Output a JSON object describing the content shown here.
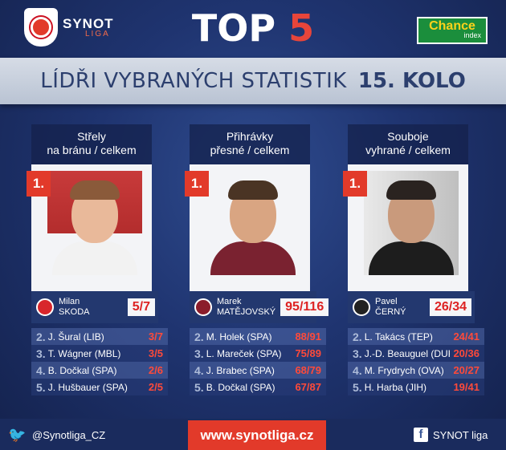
{
  "header": {
    "logo_main": "SYNOT",
    "logo_sub": "LIGA",
    "title_word": "TOP",
    "title_num": "5",
    "sponsor_main": "Chance",
    "sponsor_sub": "index"
  },
  "subtitle": {
    "text": "LÍDŘI VYBRANÝCH STATISTIK",
    "round": "15. KOLO"
  },
  "columns": [
    {
      "title_line1": "Střely",
      "title_line2": "na bránu / celkem",
      "rank": "1.",
      "first_name": "Milan",
      "last_name": "SKODA",
      "score": "5/7",
      "club_color": "#d8262c",
      "list": [
        {
          "rank": "2.",
          "player": "J. Šural (LIB)",
          "value": "3/7"
        },
        {
          "rank": "3.",
          "player": "T. Wágner (MBL)",
          "value": "3/5"
        },
        {
          "rank": "4.",
          "player": "B. Dočkal (SPA)",
          "value": "2/6"
        },
        {
          "rank": "5.",
          "player": "J. Hušbauer (SPA)",
          "value": "2/5"
        }
      ]
    },
    {
      "title_line1": "Přihrávky",
      "title_line2": "přesné / celkem",
      "rank": "1.",
      "first_name": "Marek",
      "last_name": "MATĚJOVSKÝ",
      "score": "95/116",
      "club_color": "#8b1d2b",
      "list": [
        {
          "rank": "2.",
          "player": "M. Holek (SPA)",
          "value": "88/91"
        },
        {
          "rank": "3.",
          "player": "L. Mareček (SPA)",
          "value": "75/89"
        },
        {
          "rank": "4.",
          "player": "J. Brabec (SPA)",
          "value": "68/79"
        },
        {
          "rank": "5.",
          "player": "B. Dočkal (SPA)",
          "value": "67/87"
        }
      ]
    },
    {
      "title_line1": "Souboje",
      "title_line2": "vyhrané / celkem",
      "rank": "1.",
      "first_name": "Pavel",
      "last_name": "ČERNÝ",
      "score": "26/34",
      "club_color": "#222222",
      "list": [
        {
          "rank": "2.",
          "player": "L. Takács (TEP)",
          "value": "24/41"
        },
        {
          "rank": "3.",
          "player": "J.-D. Beauguel (DUK)",
          "value": "20/36"
        },
        {
          "rank": "4.",
          "player": "M. Frydrych (OVA)",
          "value": "20/27"
        },
        {
          "rank": "5.",
          "player": "H. Harba (JIH)",
          "value": "19/41"
        }
      ]
    }
  ],
  "footer": {
    "twitter": "@Synotliga_CZ",
    "website": "www.synotliga.cz",
    "facebook": "SYNOT liga"
  },
  "colors": {
    "accent_red": "#e23a2a",
    "background": "#1f3470",
    "sponsor_green": "#1b8e3c"
  }
}
